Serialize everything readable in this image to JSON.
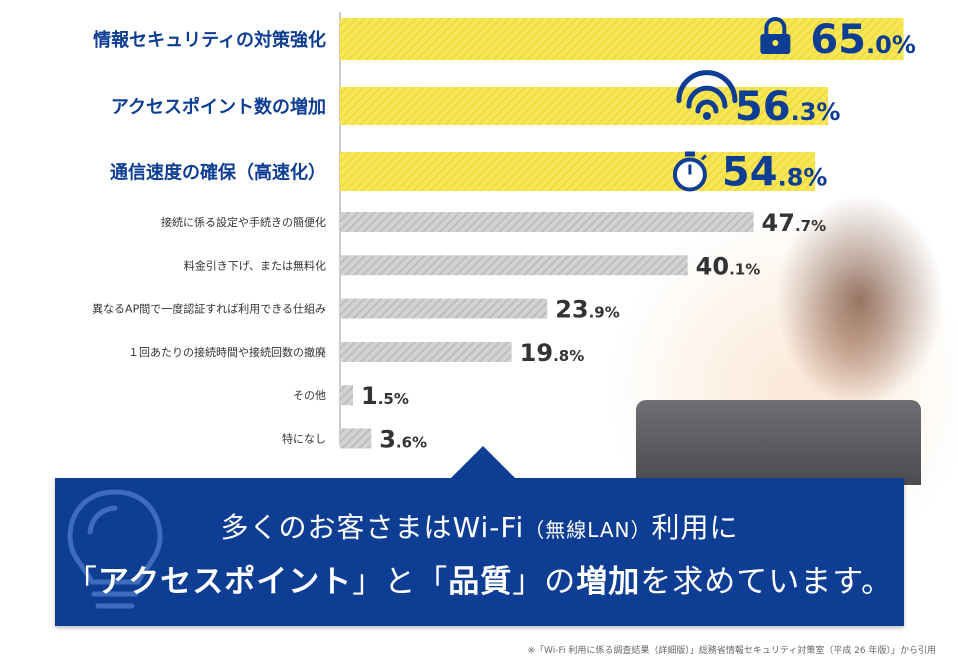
{
  "chart_data": {
    "type": "bar",
    "orientation": "horizontal",
    "unit": "%",
    "xlim": [
      0,
      100
    ],
    "categories": [
      "情報セキュリティの対策強化",
      "アクセスポイント数の増加",
      "通信速度の確保（高速化）",
      "接続に係る設定や手続きの簡便化",
      "料金引き下げ、または無料化",
      "異なるAP間で一度認証すれば利用できる仕組み",
      "１回あたりの接続時間や接続回数の撤廃",
      "その他",
      "特になし"
    ],
    "values": [
      65.0,
      56.3,
      54.8,
      47.7,
      40.1,
      23.9,
      19.8,
      1.5,
      3.6
    ],
    "value_labels_int": [
      "65",
      "56",
      "54",
      "47",
      "40",
      "23",
      "19",
      "1",
      "3"
    ],
    "value_labels_dec": [
      ".0%",
      ".3%",
      ".8%",
      ".7%",
      ".1%",
      ".9%",
      ".8%",
      ".5%",
      ".6%"
    ],
    "highlighted_count": 3,
    "highlight_icons": [
      "lock-icon",
      "wifi-icon",
      "stopwatch-icon"
    ],
    "colors": {
      "highlight_bar": "#f7e659",
      "normal_bar": "#c9c9c9",
      "highlight_text": "#0e3d94",
      "normal_text": "#333333",
      "axis": "#9a9a9a"
    }
  },
  "callout": {
    "line1_a": "多くのお客さまはWi-Fi",
    "line1_small": "（無線LAN）",
    "line1_b": "利用に",
    "line2_q1": "「",
    "line2_h1": "アクセスポイント",
    "line2_q2": "」と「",
    "line2_h2": "品質",
    "line2_q3": "」の",
    "line2_h3": "増加",
    "line2_rest": "を求めています。",
    "bg_color": "#0e3d94"
  },
  "footnote": "※「Wi-Fi 利用に係る調査結果（詳細版）」総務省情報セキュリティ対策室（平成 26 年版）」から引用"
}
